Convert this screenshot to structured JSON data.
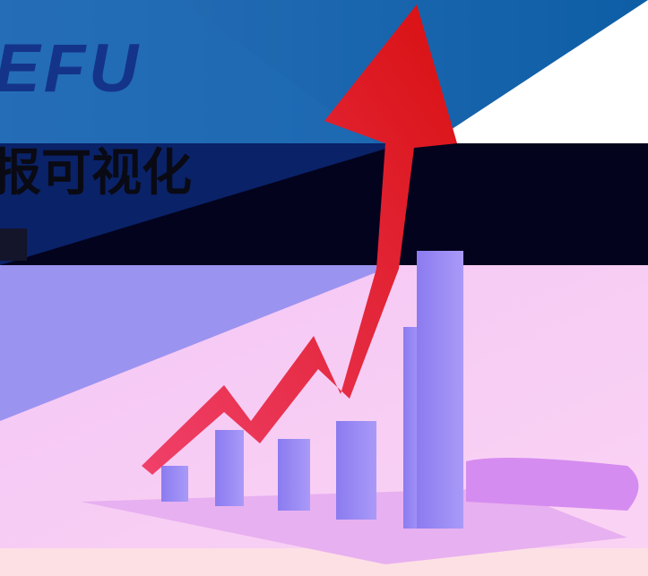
{
  "banner": {
    "logo": "EFU",
    "headline": "报可视化"
  }
}
